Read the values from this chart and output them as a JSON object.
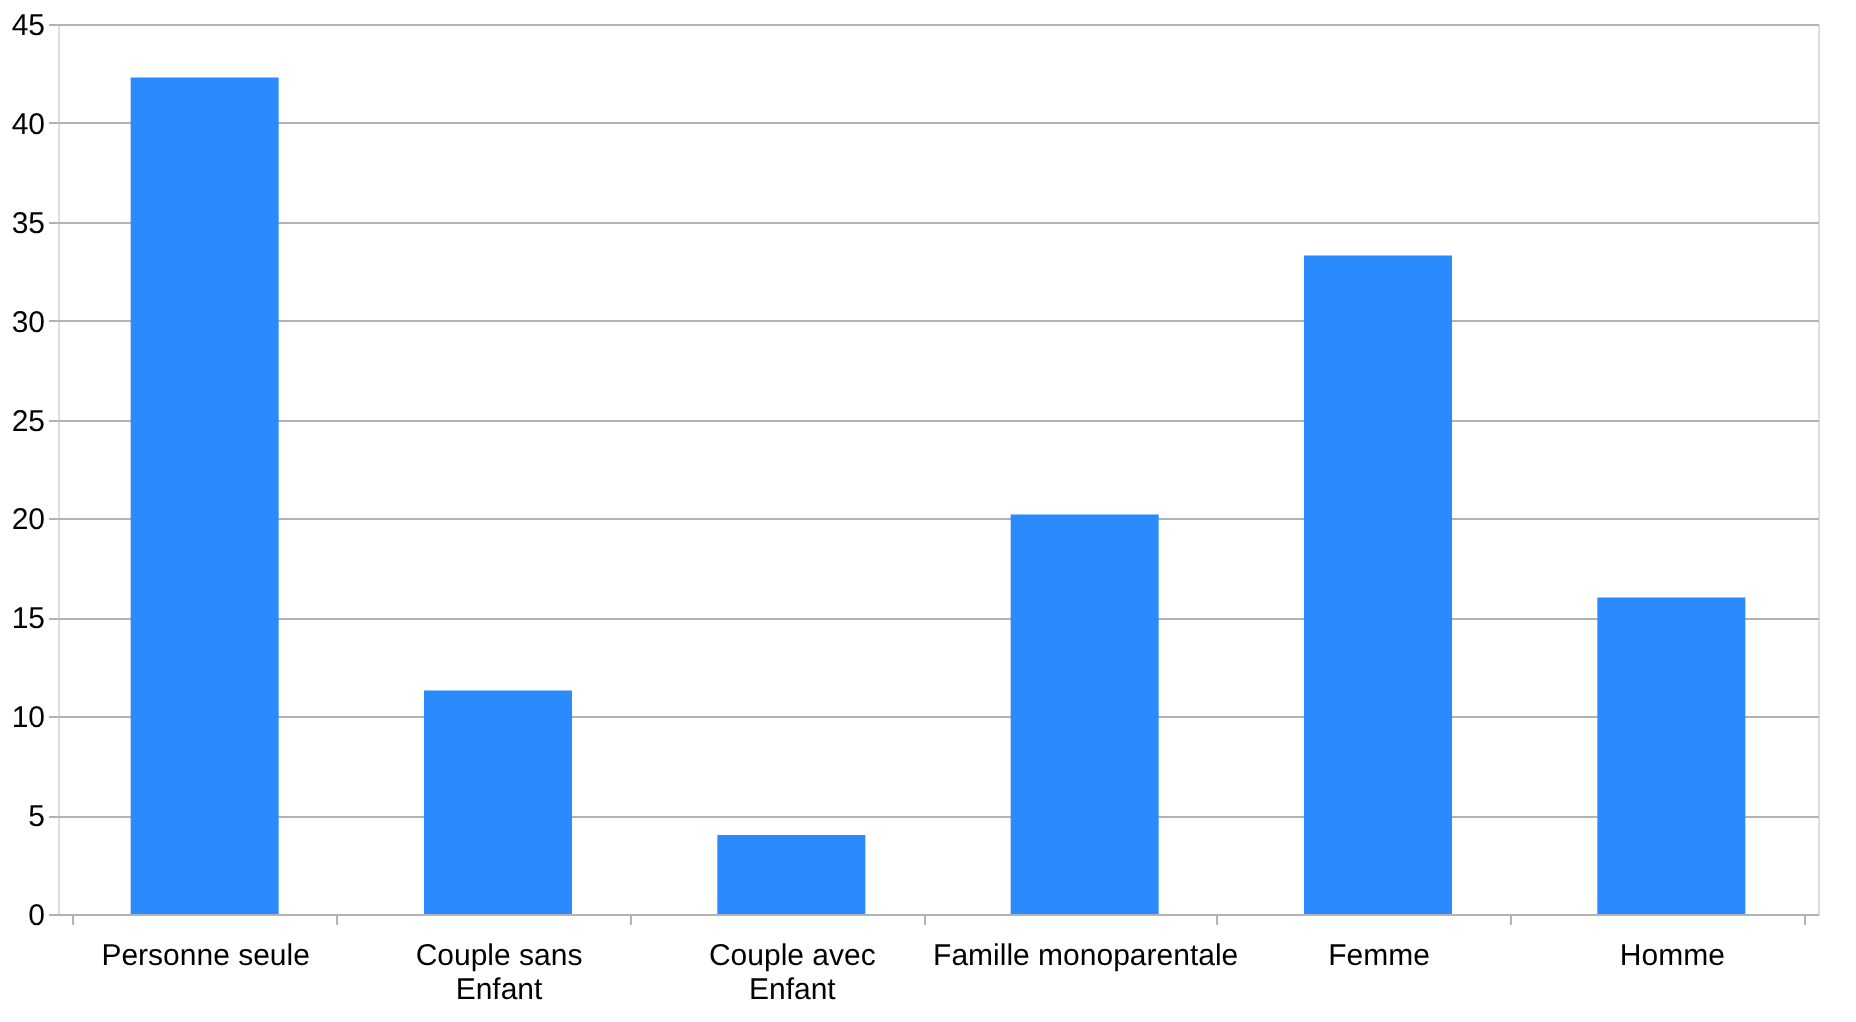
{
  "chart_data": {
    "type": "bar",
    "categories": [
      "Personne seule",
      "Couple sans Enfant",
      "Couple avec Enfant",
      "Famille monoparentale",
      "Femme",
      "Homme"
    ],
    "values": [
      42.3,
      11.3,
      4.0,
      20.2,
      33.3,
      16.0
    ],
    "color": "#2a8bff",
    "ylim": [
      0,
      45
    ],
    "yticks": [
      0,
      5,
      10,
      15,
      20,
      25,
      30,
      35,
      40,
      45
    ],
    "grid": "y"
  }
}
